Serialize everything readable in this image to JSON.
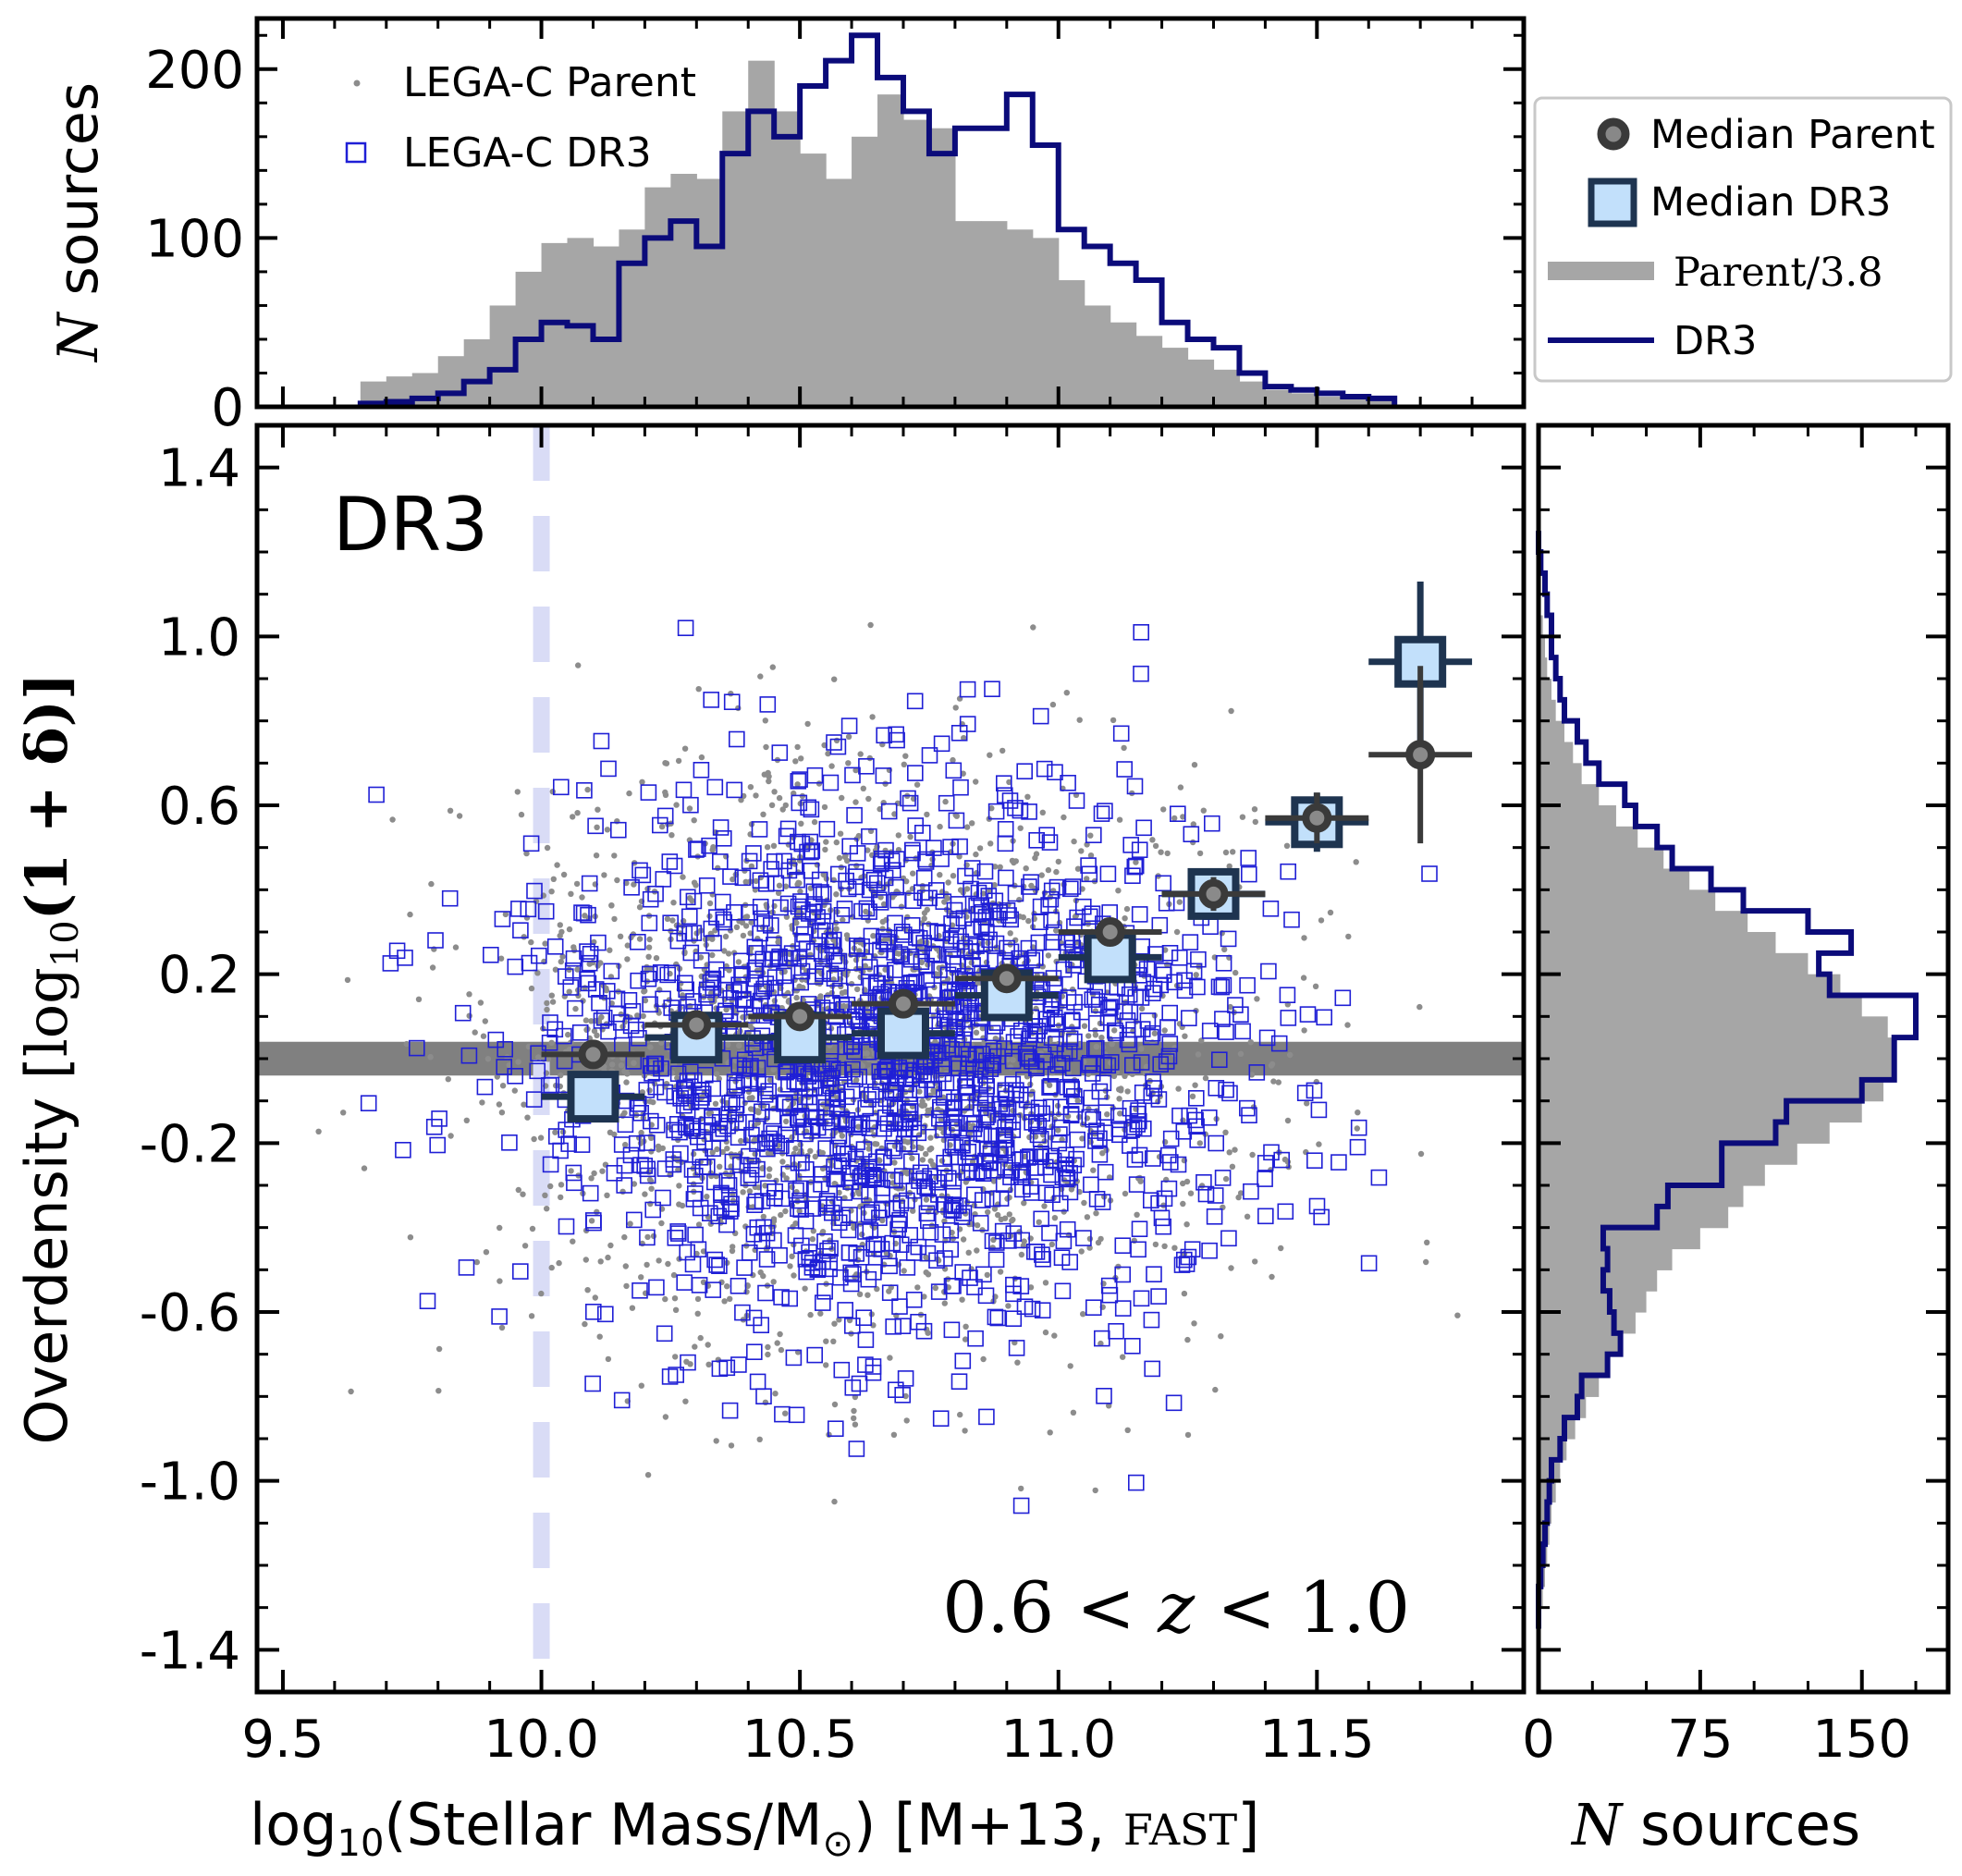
{
  "colors": {
    "parent_gray": "#a6a6a6",
    "parent_dot": "#8c8c8c",
    "dr3_blue": "#1f1fd6",
    "dr3_navy": "#0b0b7a",
    "median_dark": "#3a3a3a",
    "median_light": "#c2e0fb",
    "median_edge": "#1e3450",
    "band_gray": "#808080",
    "dashed_line": "#d9dcf6"
  },
  "chart_data": [
    {
      "type": "bar",
      "panel": "top-histogram",
      "ylabel_symbol": "N",
      "ylabel_text": " sources",
      "xlim": [
        9.45,
        11.9
      ],
      "ylim": [
        0,
        230
      ],
      "yticks": [
        0,
        100,
        200
      ],
      "ytick_labels": [
        "0",
        "100",
        "200"
      ],
      "bin_edges": [
        9.65,
        9.7,
        9.75,
        9.8,
        9.85,
        9.9,
        9.95,
        10.0,
        10.05,
        10.1,
        10.15,
        10.2,
        10.25,
        10.3,
        10.35,
        10.4,
        10.45,
        10.5,
        10.55,
        10.6,
        10.65,
        10.7,
        10.75,
        10.8,
        10.85,
        10.9,
        10.95,
        11.0,
        11.05,
        11.1,
        11.15,
        11.2,
        11.25,
        11.3,
        11.35,
        11.4,
        11.45,
        11.5,
        11.55,
        11.6,
        11.65
      ],
      "series": [
        {
          "name": "Parent/3.8",
          "style": "filled",
          "values": [
            15,
            18,
            20,
            30,
            40,
            60,
            80,
            97,
            100,
            95,
            105,
            130,
            138,
            135,
            175,
            205,
            175,
            150,
            135,
            160,
            185,
            170,
            165,
            110,
            110,
            105,
            100,
            75,
            60,
            50,
            42,
            35,
            28,
            22,
            15,
            10,
            8,
            6,
            5,
            5
          ]
        },
        {
          "name": "DR3",
          "style": "step",
          "values": [
            2,
            3,
            5,
            8,
            15,
            22,
            40,
            50,
            48,
            40,
            85,
            100,
            110,
            95,
            150,
            175,
            160,
            190,
            205,
            220,
            195,
            175,
            150,
            165,
            165,
            185,
            155,
            105,
            95,
            85,
            75,
            50,
            40,
            35,
            20,
            12,
            10,
            8,
            6,
            5
          ]
        }
      ],
      "legend": {
        "placement": "top-left",
        "entries": [
          {
            "label": "LEGA-C Parent",
            "marker": "dot"
          },
          {
            "label": "LEGA-C DR3",
            "marker": "open-square"
          }
        ]
      }
    },
    {
      "type": "scatter",
      "panel": "main",
      "annotation": "DR3",
      "redshift_label": "0.6 < z < 1.0",
      "xlabel": "log10(Stellar Mass/M⊙) [M+13, FAST]",
      "xlabel_parts": {
        "a": "log",
        "sub1": "10",
        "b": "(Stellar Mass/M",
        "sub2": "⊙",
        "c": ") [M+13, ",
        "d": "FAST",
        "e": "]"
      },
      "ylabel": "Overdensity [log10(1 + δ)]",
      "ylabel_parts": {
        "a": "Overdensity [",
        "b": "log",
        "sub": "10",
        "c": "(1 + δ)]"
      },
      "xlim": [
        9.45,
        11.9
      ],
      "ylim": [
        -1.5,
        1.5
      ],
      "xticks": [
        9.5,
        10.0,
        10.5,
        11.0,
        11.5
      ],
      "xtick_labels": [
        "9.5",
        "10.0",
        "10.5",
        "11.0",
        "11.5"
      ],
      "yticks": [
        1.4,
        1.0,
        0.6,
        0.2,
        -0.2,
        -0.6,
        -1.0,
        -1.4
      ],
      "ytick_labels": [
        "1.4",
        "1.0",
        "0.6",
        "0.2",
        "-0.2",
        "-0.6",
        "-1.0",
        "-1.4"
      ],
      "mass_limit_x": 10.0,
      "band_y": [
        -0.04,
        0.04
      ],
      "scatter_model": {
        "parent": {
          "n": 2400,
          "x_mean": 10.62,
          "x_sd": 0.35,
          "y_mean": 0.02,
          "y_sd": 0.33,
          "seed": 7
        },
        "dr3": {
          "n": 1700,
          "x_mean": 10.68,
          "x_sd": 0.33,
          "y_mean": 0.0,
          "y_sd": 0.32,
          "seed": 19
        }
      },
      "median_parent": [
        {
          "x": 10.1,
          "y": 0.01,
          "xerr": 0.1,
          "yerr": 0.02
        },
        {
          "x": 10.3,
          "y": 0.08,
          "xerr": 0.1,
          "yerr": 0.02
        },
        {
          "x": 10.5,
          "y": 0.1,
          "xerr": 0.1,
          "yerr": 0.02
        },
        {
          "x": 10.7,
          "y": 0.13,
          "xerr": 0.1,
          "yerr": 0.02
        },
        {
          "x": 10.9,
          "y": 0.19,
          "xerr": 0.1,
          "yerr": 0.02
        },
        {
          "x": 11.1,
          "y": 0.3,
          "xerr": 0.1,
          "yerr": 0.03
        },
        {
          "x": 11.3,
          "y": 0.39,
          "xerr": 0.1,
          "yerr": 0.04
        },
        {
          "x": 11.5,
          "y": 0.57,
          "xerr": 0.1,
          "yerr": 0.06
        },
        {
          "x": 11.7,
          "y": 0.72,
          "xerr": 0.1,
          "yerr": 0.21
        }
      ],
      "median_dr3": [
        {
          "x": 10.1,
          "y": -0.09,
          "xerr": 0.1,
          "yerr": 0.03
        },
        {
          "x": 10.3,
          "y": 0.05,
          "xerr": 0.1,
          "yerr": 0.02
        },
        {
          "x": 10.5,
          "y": 0.05,
          "xerr": 0.1,
          "yerr": 0.02
        },
        {
          "x": 10.7,
          "y": 0.06,
          "xerr": 0.1,
          "yerr": 0.02
        },
        {
          "x": 10.9,
          "y": 0.15,
          "xerr": 0.1,
          "yerr": 0.03
        },
        {
          "x": 11.1,
          "y": 0.24,
          "xerr": 0.1,
          "yerr": 0.04
        },
        {
          "x": 11.3,
          "y": 0.39,
          "xerr": 0.1,
          "yerr": 0.05
        },
        {
          "x": 11.5,
          "y": 0.56,
          "xerr": 0.1,
          "yerr": 0.07
        },
        {
          "x": 11.7,
          "y": 0.94,
          "xerr": 0.1,
          "yerr": 0.19
        }
      ]
    },
    {
      "type": "bar",
      "panel": "right-histogram",
      "orientation": "horizontal",
      "xlabel_symbol": "N",
      "xlabel_text": " sources",
      "xlim": [
        0,
        190
      ],
      "xticks": [
        0,
        75,
        150
      ],
      "xtick_labels": [
        "0",
        "75",
        "150"
      ],
      "ylim": [
        -1.5,
        1.5
      ],
      "bin_edges": [
        -1.35,
        -1.3,
        -1.25,
        -1.2,
        -1.15,
        -1.1,
        -1.05,
        -1.0,
        -0.95,
        -0.9,
        -0.85,
        -0.8,
        -0.75,
        -0.7,
        -0.65,
        -0.6,
        -0.55,
        -0.5,
        -0.45,
        -0.4,
        -0.35,
        -0.3,
        -0.25,
        -0.2,
        -0.15,
        -0.1,
        -0.05,
        0.0,
        0.05,
        0.1,
        0.15,
        0.2,
        0.25,
        0.3,
        0.35,
        0.4,
        0.45,
        0.5,
        0.55,
        0.6,
        0.65,
        0.7,
        0.75,
        0.8,
        0.85,
        0.9,
        0.95,
        1.0,
        1.05,
        1.1,
        1.15,
        1.2,
        1.25
      ],
      "series": [
        {
          "name": "Parent/3.8",
          "style": "filled",
          "values": [
            1,
            2,
            3,
            4,
            5,
            6,
            8,
            10,
            13,
            17,
            22,
            28,
            33,
            38,
            45,
            50,
            55,
            62,
            75,
            88,
            95,
            105,
            120,
            135,
            150,
            160,
            165,
            165,
            162,
            150,
            140,
            125,
            110,
            97,
            82,
            70,
            58,
            46,
            36,
            28,
            20,
            16,
            12,
            8,
            6,
            4,
            3,
            2,
            1,
            1,
            0,
            0
          ]
        },
        {
          "name": "DR3",
          "style": "step",
          "values": [
            0,
            0,
            1,
            2,
            3,
            4,
            5,
            6,
            10,
            12,
            18,
            20,
            32,
            38,
            35,
            33,
            30,
            32,
            30,
            55,
            60,
            85,
            85,
            110,
            115,
            150,
            165,
            165,
            175,
            175,
            135,
            130,
            145,
            125,
            95,
            80,
            62,
            55,
            45,
            40,
            28,
            22,
            18,
            12,
            10,
            8,
            6,
            6,
            4,
            3,
            1,
            0
          ]
        }
      ],
      "legend": {
        "placement": "top-right-outside",
        "entries": [
          {
            "label": "Median Parent",
            "marker": "dark-circle"
          },
          {
            "label": "Median DR3",
            "marker": "light-square"
          },
          {
            "label": "Parent/3.8",
            "marker": "gray-band"
          },
          {
            "label": "DR3",
            "marker": "navy-line"
          }
        ]
      }
    }
  ]
}
